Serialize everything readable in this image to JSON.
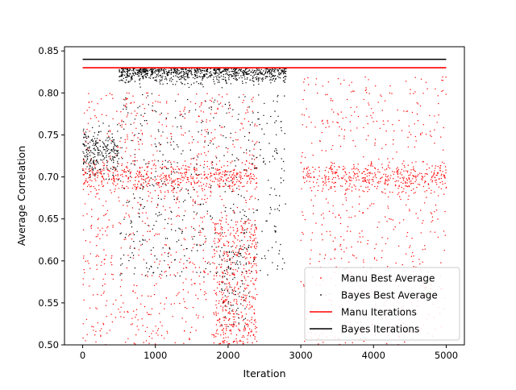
{
  "chart_data": {
    "type": "scatter",
    "title": "",
    "xlabel": "Iteration",
    "ylabel": "Average Correlation",
    "xlim": [
      -250,
      5250
    ],
    "ylim": [
      0.5,
      0.855
    ],
    "xticks": [
      0,
      1000,
      2000,
      3000,
      4000,
      5000
    ],
    "yticks": [
      0.5,
      0.55,
      0.6,
      0.65,
      0.7,
      0.75,
      0.8,
      0.85
    ],
    "xtick_labels": [
      "0",
      "1000",
      "2000",
      "3000",
      "4000",
      "5000"
    ],
    "ytick_labels": [
      "0.50",
      "0.55",
      "0.60",
      "0.65",
      "0.70",
      "0.75",
      "0.80",
      "0.85"
    ],
    "grid": false,
    "legend_position": "lower-right",
    "series": [
      {
        "name": "Manu Best Average",
        "kind": "scatter",
        "color": "#ff0000",
        "marker": "small-dot",
        "regions": [
          {
            "x_range": [
              0,
              2400
            ],
            "y_range": [
              0.5,
              0.8
            ],
            "count": 1400,
            "note": "dense cloud, concentration around 0.70 for x 500–1200"
          },
          {
            "x_range": [
              1800,
              2400
            ],
            "y_range": [
              0.5,
              0.65
            ],
            "count": 400
          },
          {
            "x_range": [
              3000,
              5000
            ],
            "y_range": [
              0.5,
              0.82
            ],
            "count": 1000,
            "note": "clusters near 0.70 at x≈3200 and x≈4200"
          }
        ]
      },
      {
        "name": "Bayes Best Average",
        "kind": "scatter",
        "color": "#000000",
        "marker": "small-dot",
        "regions": [
          {
            "x_range": [
              0,
              500
            ],
            "y_range": [
              0.55,
              0.8
            ],
            "count": 250,
            "note": "cluster near 0.73"
          },
          {
            "x_range": [
              500,
              2800
            ],
            "y_range": [
              0.78,
              0.83
            ],
            "count": 900,
            "note": "dense band just below 0.83"
          },
          {
            "x_range": [
              500,
              2800
            ],
            "y_range": [
              0.58,
              0.8
            ],
            "count": 500
          },
          {
            "x_range": [
              1900,
              2300
            ],
            "y_range": [
              0.52,
              0.62
            ],
            "count": 80
          }
        ]
      },
      {
        "name": "Manu Iterations",
        "kind": "line",
        "color": "#ff0000",
        "x": [
          0,
          5000
        ],
        "y": [
          0.83,
          0.83
        ]
      },
      {
        "name": "Bayes Iterations",
        "kind": "line",
        "color": "#000000",
        "x": [
          0,
          5000
        ],
        "y": [
          0.84,
          0.84
        ]
      }
    ]
  }
}
